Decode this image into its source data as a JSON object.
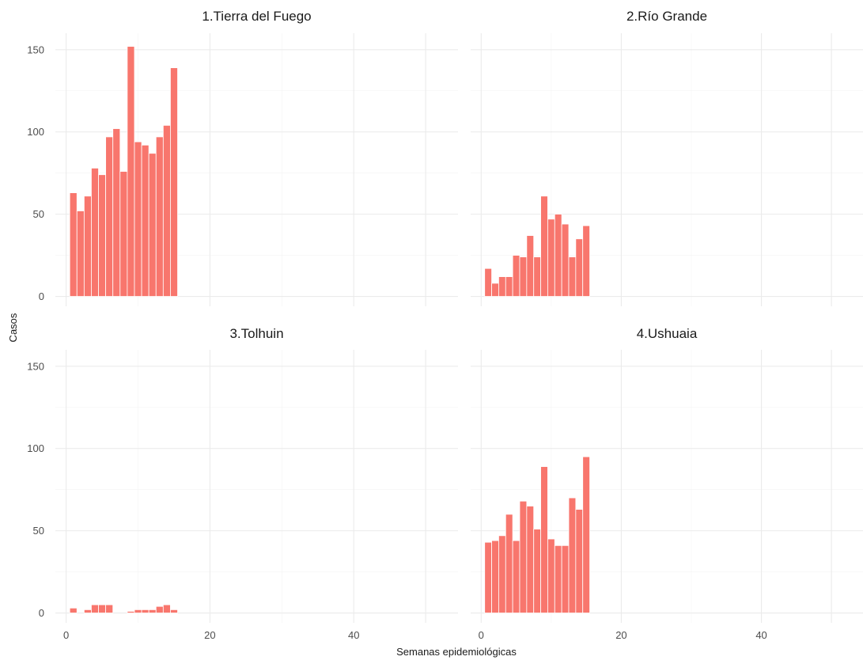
{
  "chart_data": {
    "type": "bar",
    "layout": "facet_wrap 2x2",
    "xlabel": "Semanas epidemiológicas",
    "ylabel": "Casos",
    "xlim": [
      -1.5,
      54.5
    ],
    "ylim": [
      -6,
      160
    ],
    "x_ticks": [
      0,
      20,
      40
    ],
    "y_ticks": [
      0,
      50,
      100,
      150
    ],
    "grid": true,
    "bar_color": "#F8766D",
    "grid_color": "#EBEBEB",
    "facets": [
      {
        "title": "1.Tierra del Fuego",
        "weeks": [
          1,
          2,
          3,
          4,
          5,
          6,
          7,
          8,
          9,
          10,
          11,
          12,
          13,
          14,
          15
        ],
        "values": [
          63,
          52,
          61,
          78,
          74,
          97,
          102,
          76,
          152,
          94,
          92,
          87,
          97,
          104,
          139
        ]
      },
      {
        "title": "2.Río Grande",
        "weeks": [
          1,
          2,
          3,
          4,
          5,
          6,
          7,
          8,
          9,
          10,
          11,
          12,
          13,
          14,
          15
        ],
        "values": [
          17,
          8,
          12,
          12,
          25,
          24,
          37,
          24,
          61,
          47,
          50,
          44,
          24,
          35,
          43
        ]
      },
      {
        "title": "3.Tolhuin",
        "weeks": [
          1,
          2,
          3,
          4,
          5,
          6,
          7,
          8,
          9,
          10,
          11,
          12,
          13,
          14,
          15
        ],
        "values": [
          3,
          0,
          2,
          5,
          5,
          5,
          0,
          0,
          1,
          2,
          2,
          2,
          4,
          5,
          2
        ]
      },
      {
        "title": "4.Ushuaia",
        "weeks": [
          1,
          2,
          3,
          4,
          5,
          6,
          7,
          8,
          9,
          10,
          11,
          12,
          13,
          14,
          15
        ],
        "values": [
          43,
          44,
          47,
          60,
          44,
          68,
          65,
          51,
          89,
          45,
          41,
          41,
          70,
          63,
          95
        ]
      }
    ]
  }
}
